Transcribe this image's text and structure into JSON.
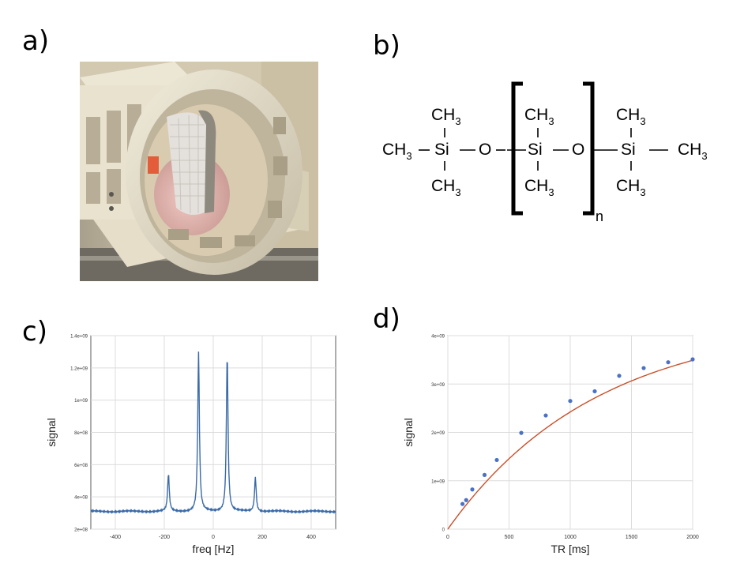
{
  "labels": {
    "a": "a)",
    "b": "b)",
    "c": "c)",
    "d": "d)"
  },
  "photo": {
    "description_icon": "mri-coil-photo-icon"
  },
  "structure": {
    "ch3": "CH",
    "sub3": "3",
    "si": "Si",
    "o": "O",
    "n": "n"
  },
  "chart_data": [
    {
      "type": "line",
      "xlabel": "freq [Hz]",
      "ylabel": "signal",
      "xlim": [
        -500,
        500
      ],
      "ylim": [
        200000000,
        1400000000
      ],
      "xticks": [
        -400,
        -200,
        0,
        200,
        400
      ],
      "xtick_labels": [
        "-400",
        "-200",
        "0",
        "200",
        "400"
      ],
      "yticks": [
        200000000,
        400000000,
        600000000,
        800000000,
        1000000000,
        1200000000,
        1400000000
      ],
      "ytick_labels": [
        "2e+08",
        "4e+08",
        "6e+08",
        "8e+08",
        "1e+09",
        "1.2e+09",
        "1.4e+09"
      ],
      "grid": true,
      "color": "#3a6aa8",
      "baseline": 310000000,
      "peaks": [
        {
          "x": -183,
          "y": 540000000
        },
        {
          "x": -60,
          "y": 1300000000
        },
        {
          "x": 57,
          "y": 1290000000
        },
        {
          "x": 172,
          "y": 525000000
        }
      ]
    },
    {
      "type": "scatter",
      "xlabel": "TR [ms]",
      "ylabel": "signal",
      "xlim": [
        0,
        2000
      ],
      "ylim": [
        0,
        4000000000
      ],
      "xticks": [
        0,
        500,
        1000,
        1500,
        2000
      ],
      "xtick_labels": [
        "0",
        "500",
        "1000",
        "1500",
        "2000"
      ],
      "yticks": [
        0,
        1000000000,
        2000000000,
        3000000000,
        4000000000
      ],
      "ytick_labels": [
        "0",
        "1e+09",
        "2e+09",
        "3e+09",
        "4e+09"
      ],
      "grid": true,
      "point_color": "#4a72c4",
      "fit_color": "#c8502a",
      "points": [
        {
          "x": 120,
          "y": 520000000
        },
        {
          "x": 150,
          "y": 600000000
        },
        {
          "x": 200,
          "y": 820000000
        },
        {
          "x": 300,
          "y": 1120000000
        },
        {
          "x": 400,
          "y": 1430000000
        },
        {
          "x": 600,
          "y": 1990000000
        },
        {
          "x": 800,
          "y": 2350000000
        },
        {
          "x": 1000,
          "y": 2650000000
        },
        {
          "x": 1200,
          "y": 2850000000
        },
        {
          "x": 1400,
          "y": 3170000000
        },
        {
          "x": 1600,
          "y": 3330000000
        },
        {
          "x": 1800,
          "y": 3450000000
        },
        {
          "x": 2000,
          "y": 3510000000
        }
      ],
      "fit": {
        "model": "S0*(1-exp(-TR/T1))",
        "S0": 4330000000,
        "T1": 1220
      }
    }
  ]
}
